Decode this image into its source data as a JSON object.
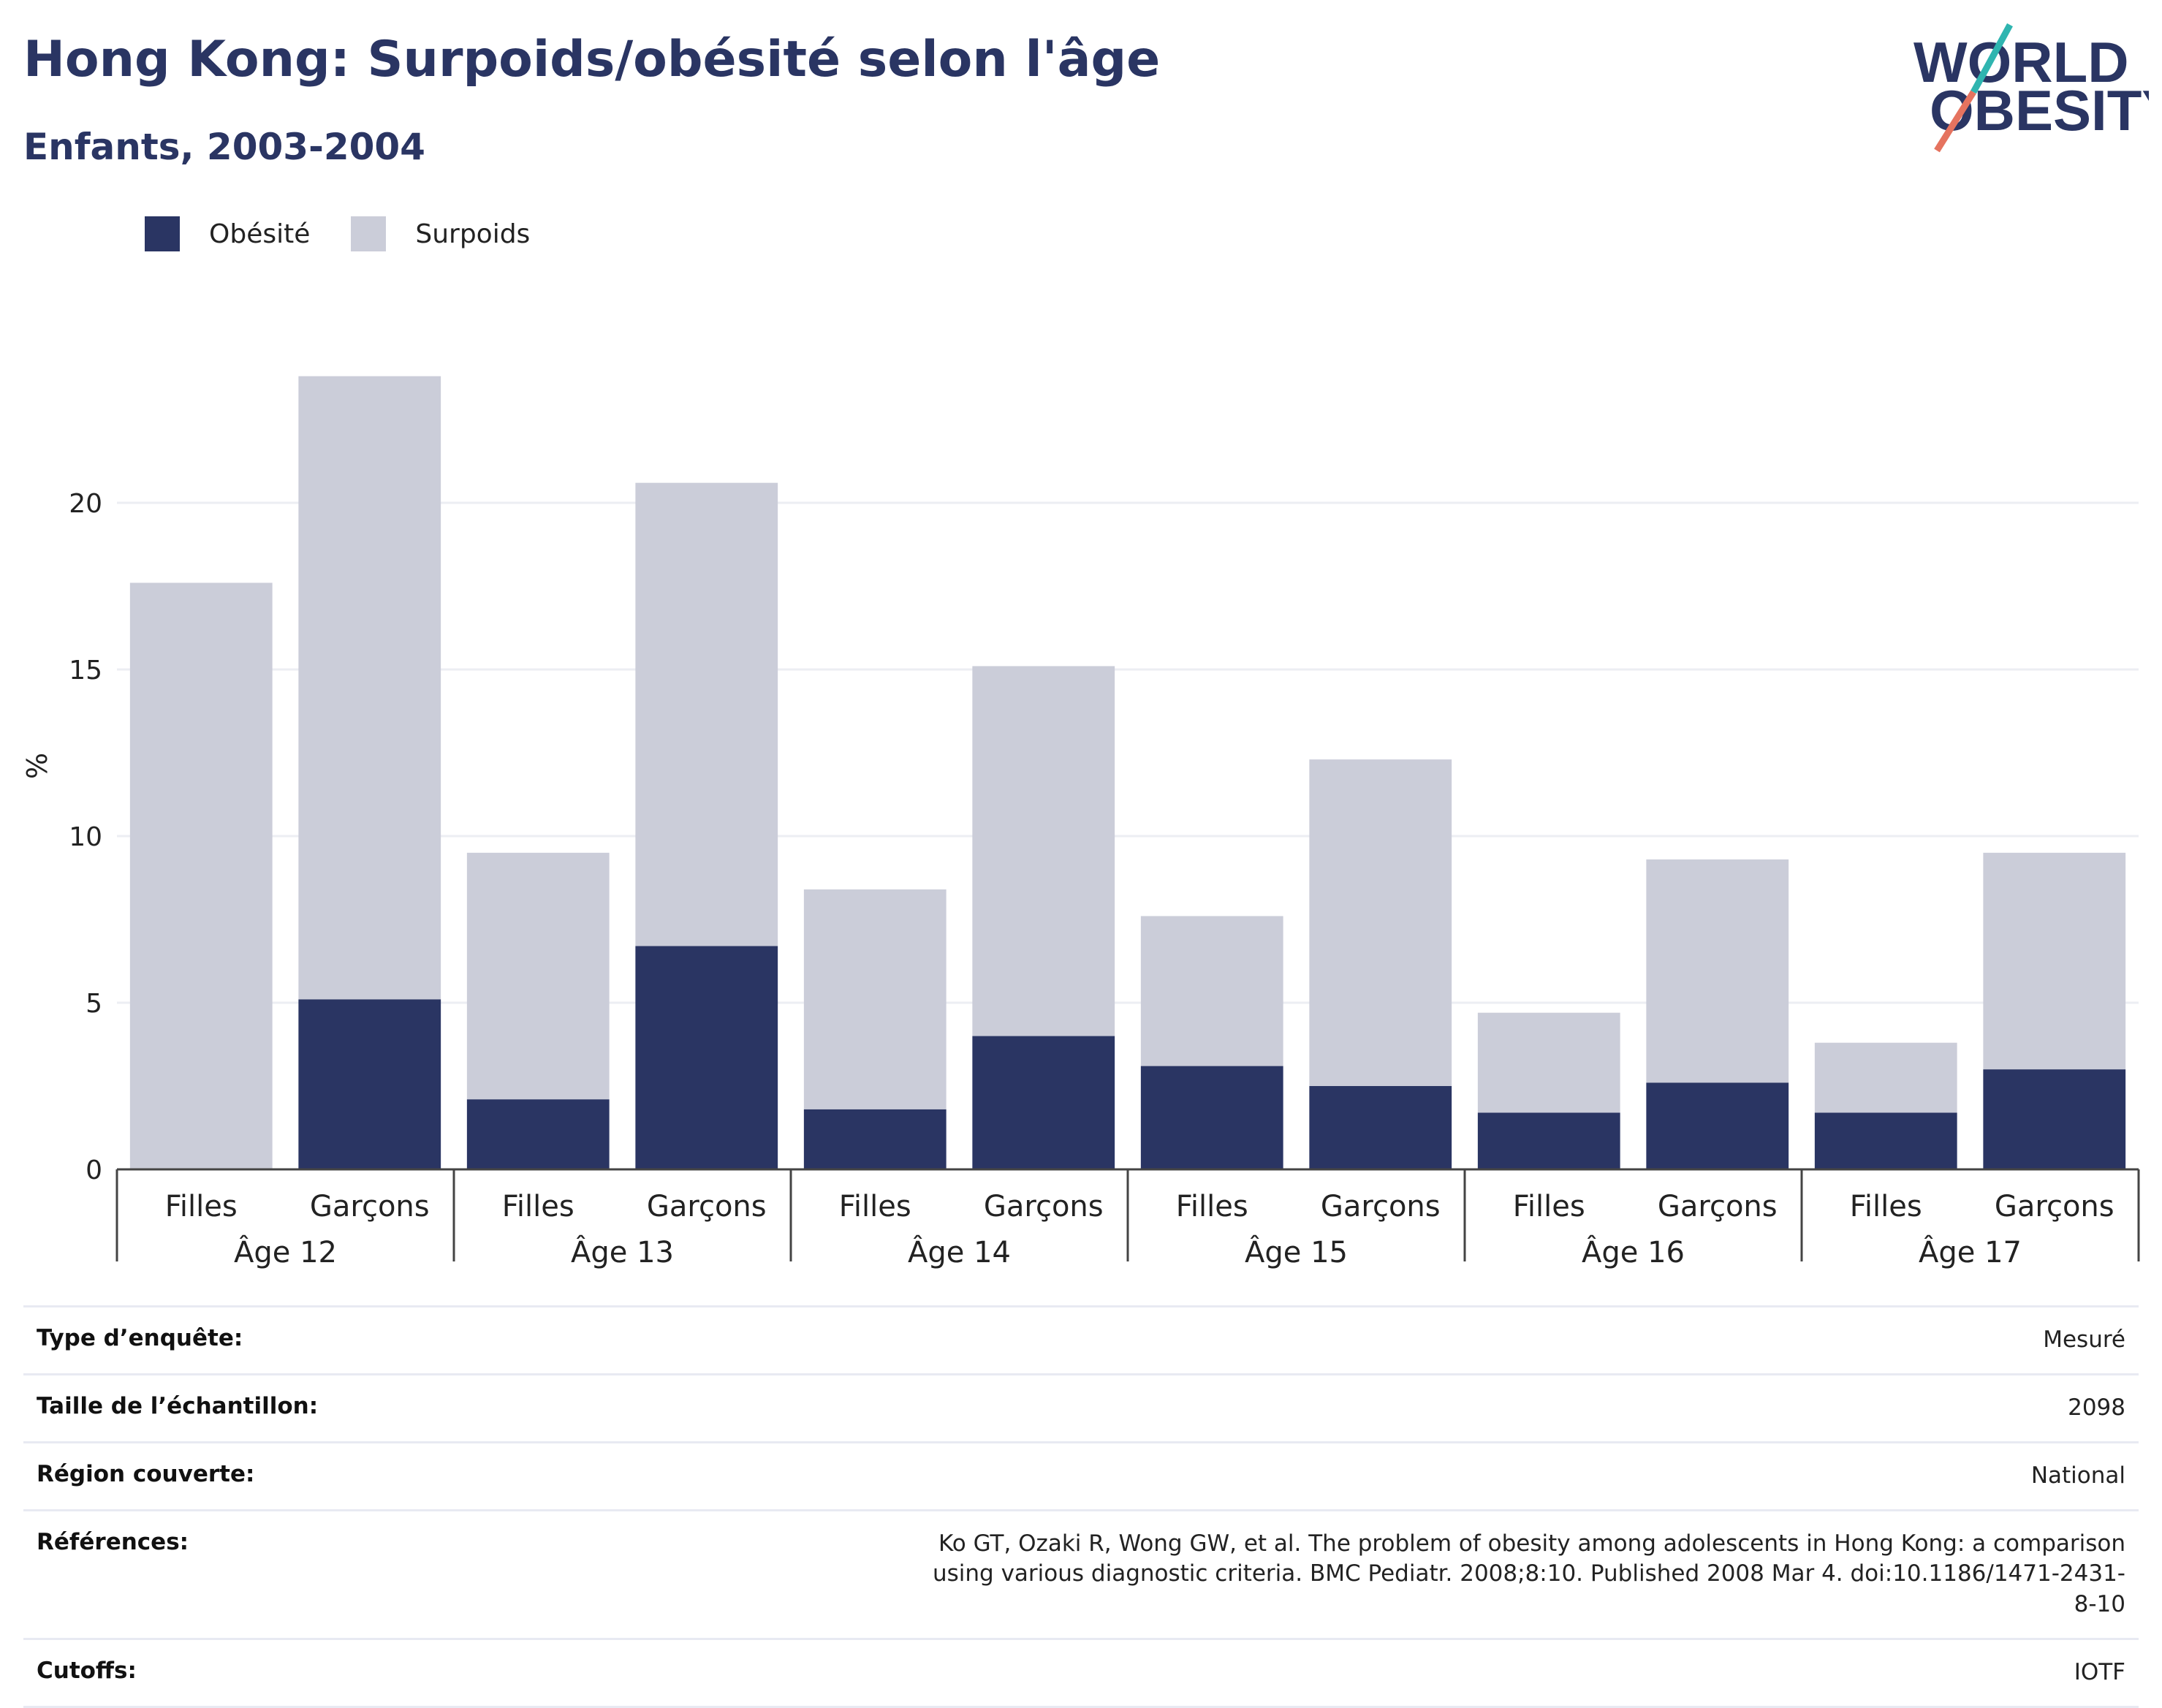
{
  "header": {
    "title": "Hong Kong: Surpoids/obésité selon l'âge",
    "subtitle": "Enfants, 2003-2004"
  },
  "logo": {
    "line1": "WORLD",
    "line2": "OBESITY"
  },
  "colors": {
    "obesity": "#2a3563",
    "overweight": "#cbcdd9",
    "text": "#2a3563",
    "grid": "#eceef3"
  },
  "chart_data": {
    "type": "bar",
    "stacked": true,
    "ylabel": "%",
    "ylim": [
      0,
      25
    ],
    "yticks": [
      0,
      5,
      10,
      15,
      20
    ],
    "grid": true,
    "legend_position": "top-left",
    "groups": [
      "Âge 12",
      "Âge 13",
      "Âge 14",
      "Âge 15",
      "Âge 16",
      "Âge 17"
    ],
    "subcategories": [
      "Filles",
      "Garçons"
    ],
    "series": [
      {
        "name": "Obésité",
        "values": [
          0,
          5.1,
          2.1,
          6.7,
          1.8,
          4.0,
          3.1,
          2.5,
          1.7,
          2.6,
          1.7,
          3.0
        ]
      },
      {
        "name": "Surpoids",
        "values": [
          17.6,
          18.7,
          7.4,
          13.9,
          6.6,
          11.1,
          4.5,
          9.8,
          3.0,
          6.7,
          2.1,
          6.5
        ]
      }
    ]
  },
  "info": [
    {
      "label": "Type d’enquête:",
      "value": "Mesuré"
    },
    {
      "label": "Taille de l’échantillon:",
      "value": "2098"
    },
    {
      "label": "Région couverte:",
      "value": "National"
    },
    {
      "label": "Références:",
      "value": "Ko GT, Ozaki R, Wong GW, et al. The problem of obesity among adolescents in Hong Kong: a comparison using various diagnostic criteria. BMC Pediatr. 2008;8:10. Published 2008 Mar 4. doi:10.1186/1471-2431-8-10"
    },
    {
      "label": "Cutoffs:",
      "value": "IOTF"
    }
  ]
}
